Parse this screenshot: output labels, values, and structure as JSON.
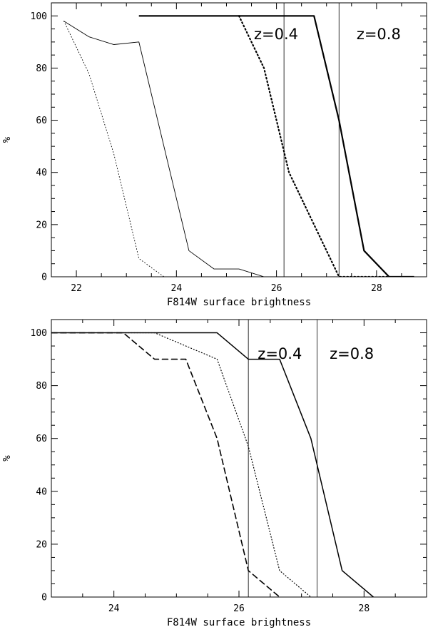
{
  "chart_data": [
    {
      "type": "line",
      "xlabel": "F814W surface brightness",
      "ylabel": "%",
      "xlim": [
        21.5,
        29
      ],
      "ylim": [
        0,
        105
      ],
      "xticks": [
        22,
        24,
        26,
        28
      ],
      "yticks": [
        0,
        20,
        40,
        60,
        80,
        100
      ],
      "grid": false,
      "series": [
        {
          "style": "thin-solid",
          "x": [
            21.75,
            22.25,
            22.75,
            23.25,
            24.25,
            24.75,
            25.25,
            25.75
          ],
          "y": [
            98,
            92,
            89,
            90,
            10,
            3,
            3,
            0
          ]
        },
        {
          "style": "thin-dotted",
          "x": [
            21.75,
            22.25,
            22.75,
            23.25,
            23.75,
            24.25
          ],
          "y": [
            98,
            78,
            47,
            7,
            0,
            0
          ]
        },
        {
          "style": "thick-dotted",
          "x": [
            25.25,
            25.75,
            26.25,
            26.75,
            27.25,
            27.75,
            28.25
          ],
          "y": [
            100,
            80,
            40,
            20,
            0,
            0,
            0
          ]
        },
        {
          "style": "thick-solid",
          "x": [
            23.25,
            26.75,
            27.25,
            27.75,
            28.25,
            28.75
          ],
          "y": [
            100,
            100,
            60,
            10,
            0,
            0
          ]
        }
      ],
      "vlines": [
        26.15,
        27.25
      ],
      "annotations": [
        {
          "text": "z=0.4",
          "x": 25.55,
          "y": 93
        },
        {
          "text": "z=0.8",
          "x": 27.6,
          "y": 93
        }
      ]
    },
    {
      "type": "line",
      "xlabel": "F814W surface brightness",
      "ylabel": "%",
      "xlim": [
        23,
        29
      ],
      "ylim": [
        0,
        105
      ],
      "xticks": [
        24,
        26,
        28
      ],
      "yticks": [
        0,
        20,
        40,
        60,
        80,
        100
      ],
      "grid": false,
      "series": [
        {
          "style": "dashed",
          "x": [
            23.0,
            24.15,
            24.65,
            25.15,
            25.65,
            26.15,
            26.65
          ],
          "y": [
            100,
            100,
            90,
            90,
            60,
            10,
            0
          ]
        },
        {
          "style": "dotted",
          "x": [
            23.0,
            24.65,
            25.65,
            26.15,
            26.65,
            27.15
          ],
          "y": [
            100,
            100,
            90,
            57,
            10,
            0
          ]
        },
        {
          "style": "solid",
          "x": [
            23.0,
            25.65,
            26.15,
            26.65,
            27.15,
            27.65,
            28.15
          ],
          "y": [
            100,
            100,
            90,
            90,
            60,
            10,
            0
          ]
        }
      ],
      "vlines": [
        26.15,
        27.25
      ],
      "annotations": [
        {
          "text": "z=0.4",
          "x": 26.3,
          "y": 92
        },
        {
          "text": "z=0.8",
          "x": 27.45,
          "y": 92
        }
      ]
    }
  ]
}
